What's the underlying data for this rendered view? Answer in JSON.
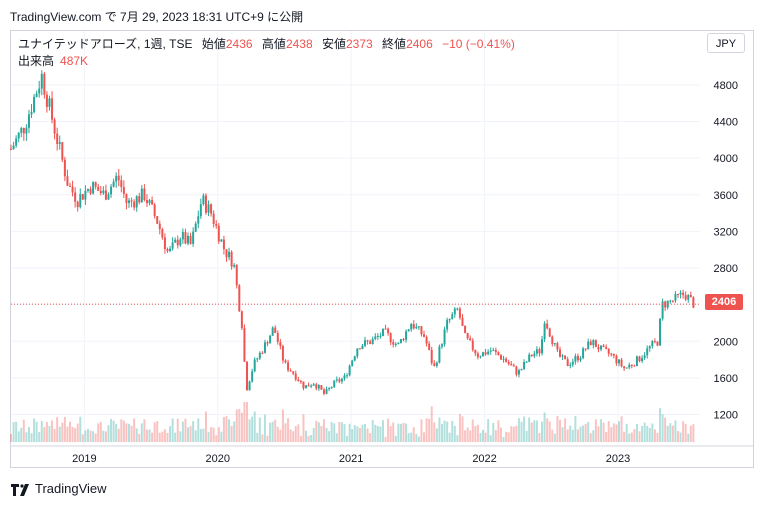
{
  "header": {
    "caption": "TradingView.com で 7月 29, 2023 18:31 UTC+9 に公開"
  },
  "legend": {
    "symbol": "ユナイテッドアローズ, 1週, TSE",
    "open_label": "始値",
    "open": "2436",
    "high_label": "高値",
    "high": "2438",
    "low_label": "安値",
    "low": "2373",
    "close_label": "終値",
    "close": "2406",
    "change": "−10 (−0.41%)"
  },
  "volume": {
    "label": "出来高",
    "value": "487K"
  },
  "currency": "JPY",
  "last_price_tag": "2406",
  "footer": {
    "logo_text": "TradingView"
  },
  "colors": {
    "up": "#26a69a",
    "down": "#ef5350",
    "last_price_line": "#ef5350",
    "grid": "#f0f3fa"
  },
  "chart_data": {
    "type": "candlestick",
    "interval": "1W",
    "y_ticks": [
      1200,
      1600,
      2000,
      2400,
      2800,
      3200,
      3600,
      4000,
      4400,
      4800
    ],
    "x_ticks": [
      {
        "label": "2019",
        "t": 2019.0
      },
      {
        "label": "2020",
        "t": 2020.0
      },
      {
        "label": "2021",
        "t": 2021.0
      },
      {
        "label": "2022",
        "t": 2022.0
      },
      {
        "label": "2023",
        "t": 2023.0
      }
    ],
    "x_range": [
      2018.45,
      2023.6
    ],
    "y_range": [
      900,
      5050
    ],
    "last_close": 2406,
    "close_path": [
      [
        2018.45,
        4100
      ],
      [
        2018.55,
        4350
      ],
      [
        2018.68,
        4900
      ],
      [
        2018.78,
        4300
      ],
      [
        2018.88,
        3700
      ],
      [
        2018.95,
        3550
      ],
      [
        2019.05,
        3700
      ],
      [
        2019.15,
        3600
      ],
      [
        2019.25,
        3800
      ],
      [
        2019.32,
        3500
      ],
      [
        2019.45,
        3600
      ],
      [
        2019.55,
        3300
      ],
      [
        2019.63,
        2950
      ],
      [
        2019.72,
        3150
      ],
      [
        2019.8,
        3050
      ],
      [
        2019.88,
        3550
      ],
      [
        2019.95,
        3400
      ],
      [
        2020.05,
        3000
      ],
      [
        2020.12,
        2850
      ],
      [
        2020.16,
        2400
      ],
      [
        2020.19,
        2100
      ],
      [
        2020.21,
        1450
      ],
      [
        2020.27,
        1750
      ],
      [
        2020.35,
        1950
      ],
      [
        2020.42,
        2150
      ],
      [
        2020.5,
        1750
      ],
      [
        2020.57,
        1650
      ],
      [
        2020.65,
        1500
      ],
      [
        2020.72,
        1550
      ],
      [
        2020.8,
        1420
      ],
      [
        2020.88,
        1550
      ],
      [
        2020.95,
        1600
      ],
      [
        2021.05,
        1950
      ],
      [
        2021.15,
        2000
      ],
      [
        2021.25,
        2100
      ],
      [
        2021.35,
        1950
      ],
      [
        2021.45,
        2200
      ],
      [
        2021.55,
        2050
      ],
      [
        2021.62,
        1700
      ],
      [
        2021.72,
        2200
      ],
      [
        2021.8,
        2350
      ],
      [
        2021.85,
        2050
      ],
      [
        2021.95,
        1850
      ],
      [
        2022.05,
        1900
      ],
      [
        2022.15,
        1800
      ],
      [
        2022.25,
        1650
      ],
      [
        2022.35,
        1850
      ],
      [
        2022.42,
        1900
      ],
      [
        2022.45,
        2250
      ],
      [
        2022.55,
        1850
      ],
      [
        2022.62,
        1750
      ],
      [
        2022.72,
        1850
      ],
      [
        2022.8,
        2000
      ],
      [
        2022.88,
        1900
      ],
      [
        2022.95,
        1850
      ],
      [
        2023.05,
        1700
      ],
      [
        2023.15,
        1800
      ],
      [
        2023.25,
        1950
      ],
      [
        2023.3,
        2000
      ],
      [
        2023.33,
        2400
      ],
      [
        2023.42,
        2450
      ],
      [
        2023.5,
        2520
      ],
      [
        2023.57,
        2406
      ]
    ]
  }
}
